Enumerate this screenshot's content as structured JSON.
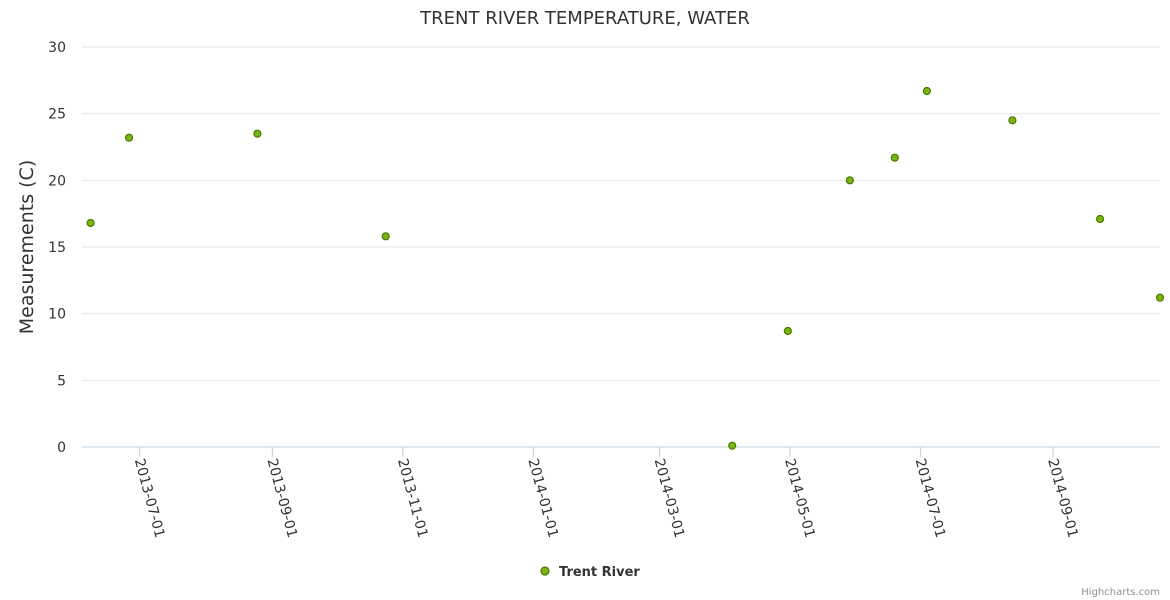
{
  "chart_data": {
    "type": "scatter",
    "title": "TRENT RIVER TEMPERATURE, WATER",
    "xlabel": "",
    "ylabel": "Measurements (C)",
    "ylim": [
      0,
      30
    ],
    "yticks": [
      0,
      5,
      10,
      15,
      20,
      25,
      30
    ],
    "xlim": [
      "2013-06-04",
      "2014-10-21"
    ],
    "xticks": [
      "2013-07-01",
      "2013-09-01",
      "2013-11-01",
      "2014-01-01",
      "2014-03-01",
      "2014-05-01",
      "2014-07-01",
      "2014-09-01"
    ],
    "grid": true,
    "legend_position": "bottom-center",
    "series": [
      {
        "name": "Trent River",
        "color": "#7cb511",
        "stroke": "#4a7a00",
        "points": [
          {
            "x": "2013-06-08",
            "y": 16.8
          },
          {
            "x": "2013-06-26",
            "y": 23.2
          },
          {
            "x": "2013-08-25",
            "y": 23.5
          },
          {
            "x": "2013-10-24",
            "y": 15.8
          },
          {
            "x": "2014-04-04",
            "y": 0.1
          },
          {
            "x": "2014-04-30",
            "y": 8.7
          },
          {
            "x": "2014-05-29",
            "y": 20.0
          },
          {
            "x": "2014-06-19",
            "y": 21.7
          },
          {
            "x": "2014-07-04",
            "y": 26.7
          },
          {
            "x": "2014-08-13",
            "y": 24.5
          },
          {
            "x": "2014-09-23",
            "y": 17.1
          },
          {
            "x": "2014-10-21",
            "y": 11.2
          }
        ]
      }
    ]
  },
  "credits": "Highcharts.com"
}
